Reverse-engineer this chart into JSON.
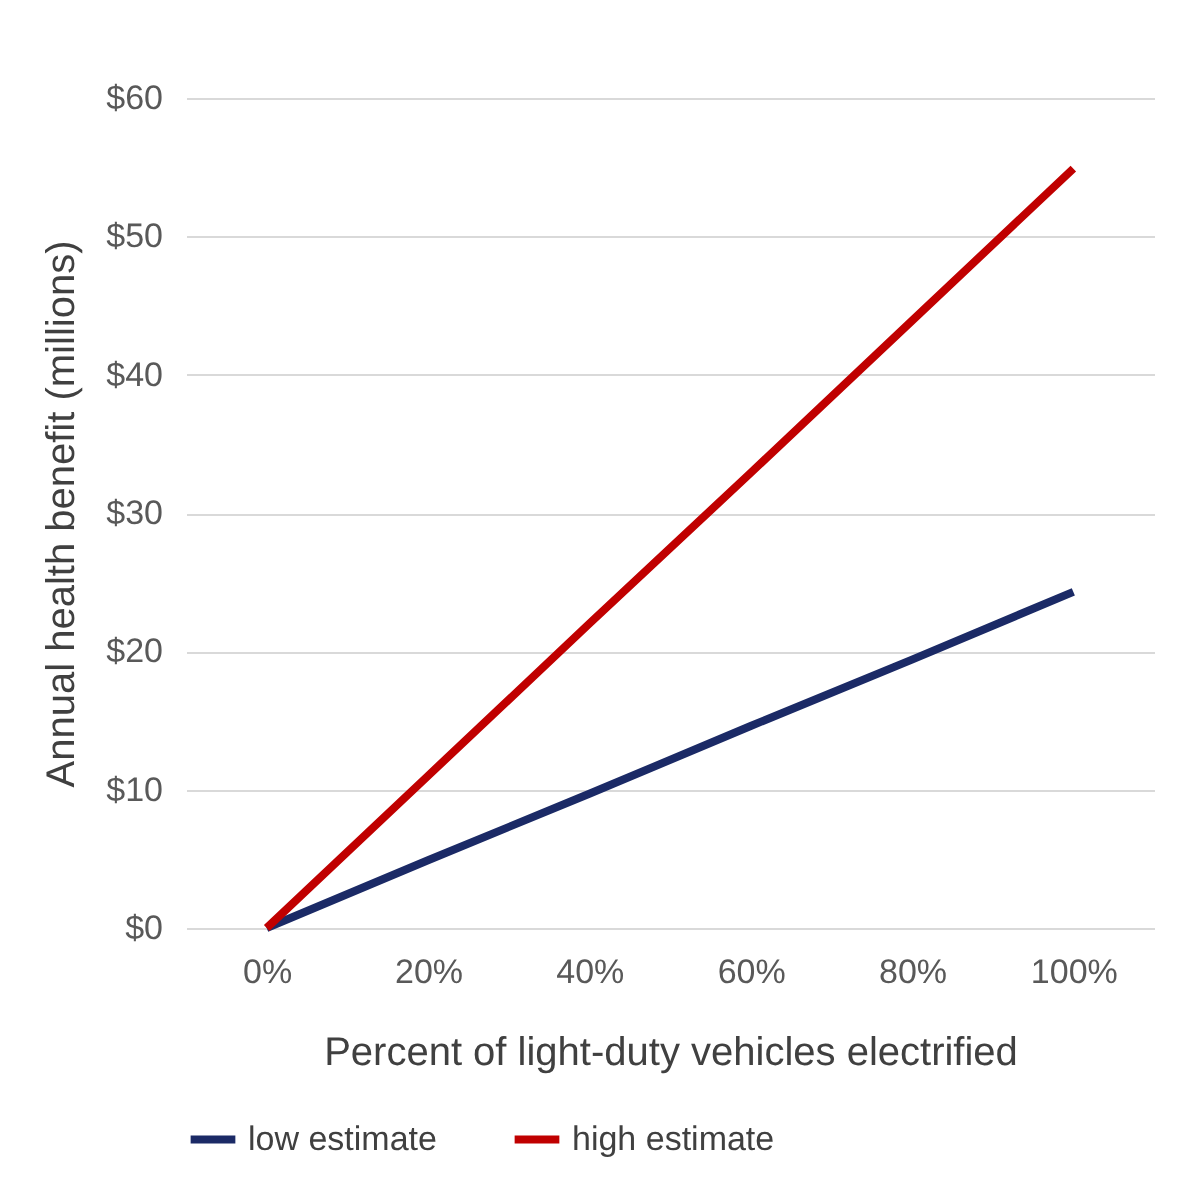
{
  "chart_data": {
    "type": "line",
    "xlabel": "Percent of light-duty vehicles electrified",
    "ylabel": "Annual health benefit (millions)",
    "categories": [
      "0%",
      "20%",
      "40%",
      "60%",
      "80%",
      "100%"
    ],
    "series": [
      {
        "name": "low estimate",
        "color": "#1b2a66",
        "values": [
          0,
          4.9,
          9.7,
          14.6,
          19.4,
          24.3
        ]
      },
      {
        "name": "high estimate",
        "color": "#c00000",
        "values": [
          0,
          11,
          22,
          32.9,
          43.9,
          54.9
        ]
      }
    ],
    "ylim": [
      0,
      60
    ],
    "yticks": [
      {
        "value": 0,
        "label": "$0"
      },
      {
        "value": 10,
        "label": "$10"
      },
      {
        "value": 20,
        "label": "$20"
      },
      {
        "value": 30,
        "label": "$30"
      },
      {
        "value": 40,
        "label": "$40"
      },
      {
        "value": 50,
        "label": "$50"
      },
      {
        "value": 60,
        "label": "$60"
      }
    ],
    "grid": "y",
    "legend": "bottom",
    "line_style": "solid",
    "marker": "none"
  }
}
